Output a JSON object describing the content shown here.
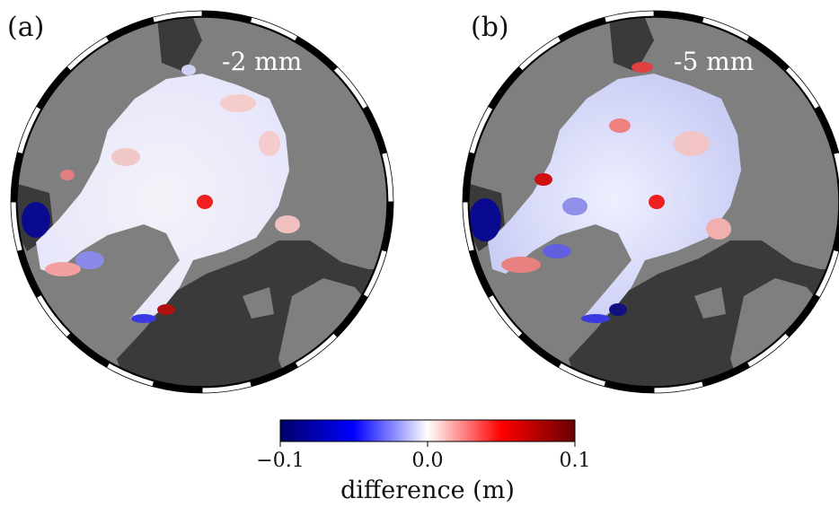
{
  "chart_data": {
    "type": "heatmap",
    "projection": "north polar stereographic",
    "panels": [
      {
        "label": "(a)",
        "annotation": "-2 mm"
      },
      {
        "label": "(b)",
        "annotation": "-5 mm"
      }
    ],
    "colorbar": {
      "label": "difference (m)",
      "range": [
        -0.1,
        0.1
      ],
      "ticks": [
        -0.1,
        0.0,
        0.1
      ],
      "tick_labels": [
        "−0.1",
        "0.0",
        "0.1"
      ],
      "colormap": [
        "#000066",
        "#0000ff",
        "#ffffff",
        "#ff0000",
        "#660000"
      ]
    },
    "colors": {
      "land": "#7f7f7f",
      "ocean": "#3a3a3a",
      "ice": "#f7f7fb"
    }
  }
}
